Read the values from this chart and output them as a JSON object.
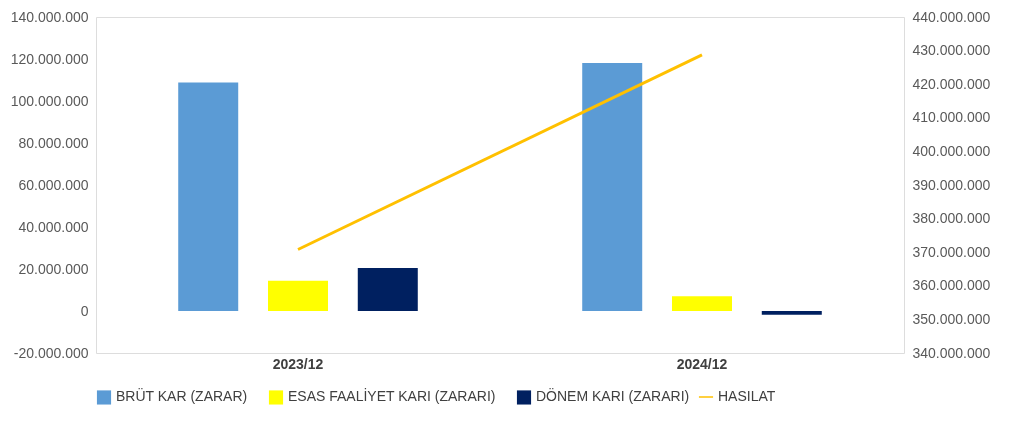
{
  "chart_data": {
    "type": "bar",
    "categories": [
      "2023/12",
      "2024/12"
    ],
    "series": [
      {
        "name": "BRÜT KAR (ZARAR)",
        "color": "#5b9bd5",
        "values": [
          108800000,
          118100000
        ]
      },
      {
        "name": "ESAS FAALİYET KARI (ZARARI)",
        "color": "#ffff00",
        "values": [
          14400000,
          7000000
        ]
      },
      {
        "name": "DÖNEM KARI (ZARARI)",
        "color": "#002060",
        "values": [
          20500000,
          -1800000
        ]
      },
      {
        "name": "HASILAT",
        "color": "#ffc000",
        "values": [
          370800000,
          428700000
        ],
        "type": "line",
        "axis": "y2"
      }
    ],
    "ylim": [
      -20000000,
      140000000
    ],
    "yticks": [
      {
        "value": -20000000,
        "label": "-20.000.000"
      },
      0,
      {
        "value": 20000000,
        "label": "20.000.000"
      },
      {
        "value": 40000000,
        "label": "40.000.000"
      },
      {
        "value": 60000000,
        "label": "60.000.000"
      },
      {
        "value": 80000000,
        "label": "80.000.000"
      },
      {
        "value": 100000000,
        "label": "100.000.000"
      },
      {
        "value": 120000000,
        "label": "120.000.000"
      },
      {
        "value": 140000000,
        "label": "140.000.000"
      }
    ],
    "y2lim": [
      340000000,
      440000000
    ],
    "y2ticks": [
      {
        "value": 340000000,
        "label": "340.000.000"
      },
      {
        "value": 350000000,
        "label": "350.000.000"
      },
      {
        "value": 360000000,
        "label": "360.000.000"
      },
      {
        "value": 370000000,
        "label": "370.000.000"
      },
      {
        "value": 380000000,
        "label": "380.000.000"
      },
      {
        "value": 390000000,
        "label": "390.000.000"
      },
      {
        "value": 400000000,
        "label": "400.000.000"
      },
      {
        "value": 410000000,
        "label": "410.000.000"
      },
      {
        "value": 420000000,
        "label": "420.000.000"
      },
      {
        "value": 430000000,
        "label": "430.000.000"
      },
      {
        "value": 440000000,
        "label": "440.000.000"
      }
    ],
    "grid": false,
    "legend": "bottom"
  }
}
